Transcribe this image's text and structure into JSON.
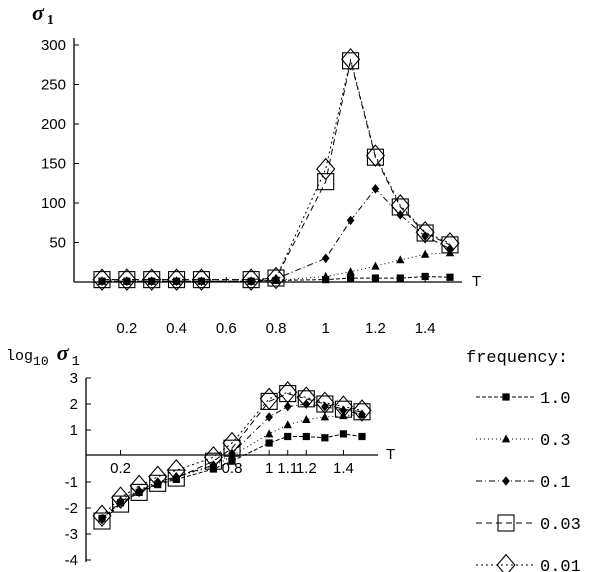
{
  "chart_data": [
    {
      "type": "line",
      "ylabel": "σ1",
      "xlabel": "T",
      "x": [
        0.1,
        0.2,
        0.3,
        0.4,
        0.5,
        0.7,
        0.8,
        1.0,
        1.1,
        1.2,
        1.3,
        1.4,
        1.5
      ],
      "xticks": [
        0.2,
        0.4,
        0.6,
        0.8,
        1,
        1.2,
        1.4
      ],
      "xtick_labels": [
        "0.2",
        "0.4",
        "0.6",
        "0.8",
        "1",
        "1.2",
        "1.4"
      ],
      "yticks": [
        50,
        100,
        150,
        200,
        250,
        300
      ],
      "ytick_labels": [
        "50",
        "100",
        "150",
        "200",
        "250",
        "300"
      ],
      "ylim": [
        0,
        300
      ],
      "series": [
        {
          "name": "1.0",
          "marker": "square",
          "values": [
            1,
            1,
            1,
            1,
            1,
            1,
            2,
            3,
            5,
            5,
            5,
            7,
            6
          ]
        },
        {
          "name": "0.3",
          "marker": "triangle",
          "values": [
            1,
            1,
            1,
            1,
            1,
            1,
            2,
            7,
            13,
            20,
            28,
            35,
            37
          ]
        },
        {
          "name": "0.1",
          "marker": "diamond",
          "values": [
            1,
            1,
            1,
            1,
            1,
            1,
            4,
            30,
            78,
            118,
            85,
            58,
            42
          ]
        },
        {
          "name": "0.03",
          "marker": "open-square",
          "values": [
            3,
            3,
            3,
            3,
            3,
            3,
            5,
            127,
            280,
            158,
            95,
            62,
            47
          ]
        },
        {
          "name": "0.01",
          "marker": "open-diamond",
          "values": [
            3,
            3,
            3,
            3,
            3,
            3,
            5,
            143,
            282,
            160,
            97,
            63,
            49
          ]
        }
      ]
    },
    {
      "type": "line",
      "ylabel": "log10 σ1",
      "xlabel": "T",
      "x": [
        0.1,
        0.2,
        0.3,
        0.4,
        0.5,
        0.7,
        0.8,
        1.0,
        1.1,
        1.2,
        1.3,
        1.4,
        1.5
      ],
      "xticks": [
        0.2,
        0.8,
        1,
        1.1,
        1.2,
        1.4
      ],
      "xtick_labels": [
        "0.2",
        "0.8",
        "1",
        "1.1",
        "1.2",
        "1.4"
      ],
      "yticks": [
        -4,
        -3,
        -2,
        -1,
        1,
        2,
        3
      ],
      "ytick_labels": [
        "-4",
        "-3",
        "-2",
        "-1",
        "1",
        "2",
        "3"
      ],
      "ylim": [
        -4,
        3
      ],
      "series": [
        {
          "name": "1.0",
          "marker": "square",
          "values": [
            -2.4,
            -1.8,
            -1.4,
            -1.1,
            -0.9,
            -0.5,
            -0.2,
            0.5,
            0.75,
            0.75,
            0.7,
            0.85,
            0.75
          ]
        },
        {
          "name": "0.3",
          "marker": "triangle",
          "values": [
            -2.4,
            -1.7,
            -1.3,
            -1.0,
            -0.8,
            -0.4,
            0.0,
            0.85,
            1.2,
            1.4,
            1.5,
            1.55,
            1.6
          ]
        },
        {
          "name": "0.1",
          "marker": "diamond",
          "values": [
            -2.45,
            -1.75,
            -1.35,
            -1.0,
            -0.8,
            -0.35,
            0.1,
            1.5,
            1.9,
            2.0,
            1.9,
            1.75,
            1.6
          ]
        },
        {
          "name": "0.03",
          "marker": "open-square",
          "values": [
            -2.5,
            -1.85,
            -1.4,
            -1.05,
            -0.85,
            -0.2,
            0.3,
            2.1,
            2.4,
            2.2,
            2.0,
            1.8,
            1.7
          ]
        },
        {
          "name": "0.01",
          "marker": "open-diamond",
          "values": [
            -2.3,
            -1.6,
            -1.15,
            -0.8,
            -0.55,
            -0.05,
            0.5,
            2.2,
            2.45,
            2.25,
            2.05,
            1.9,
            1.75
          ]
        }
      ]
    }
  ],
  "legend": {
    "title": "frequency:",
    "entries": [
      "1.0",
      "0.3",
      "0.1",
      "0.03",
      "0.01"
    ]
  }
}
